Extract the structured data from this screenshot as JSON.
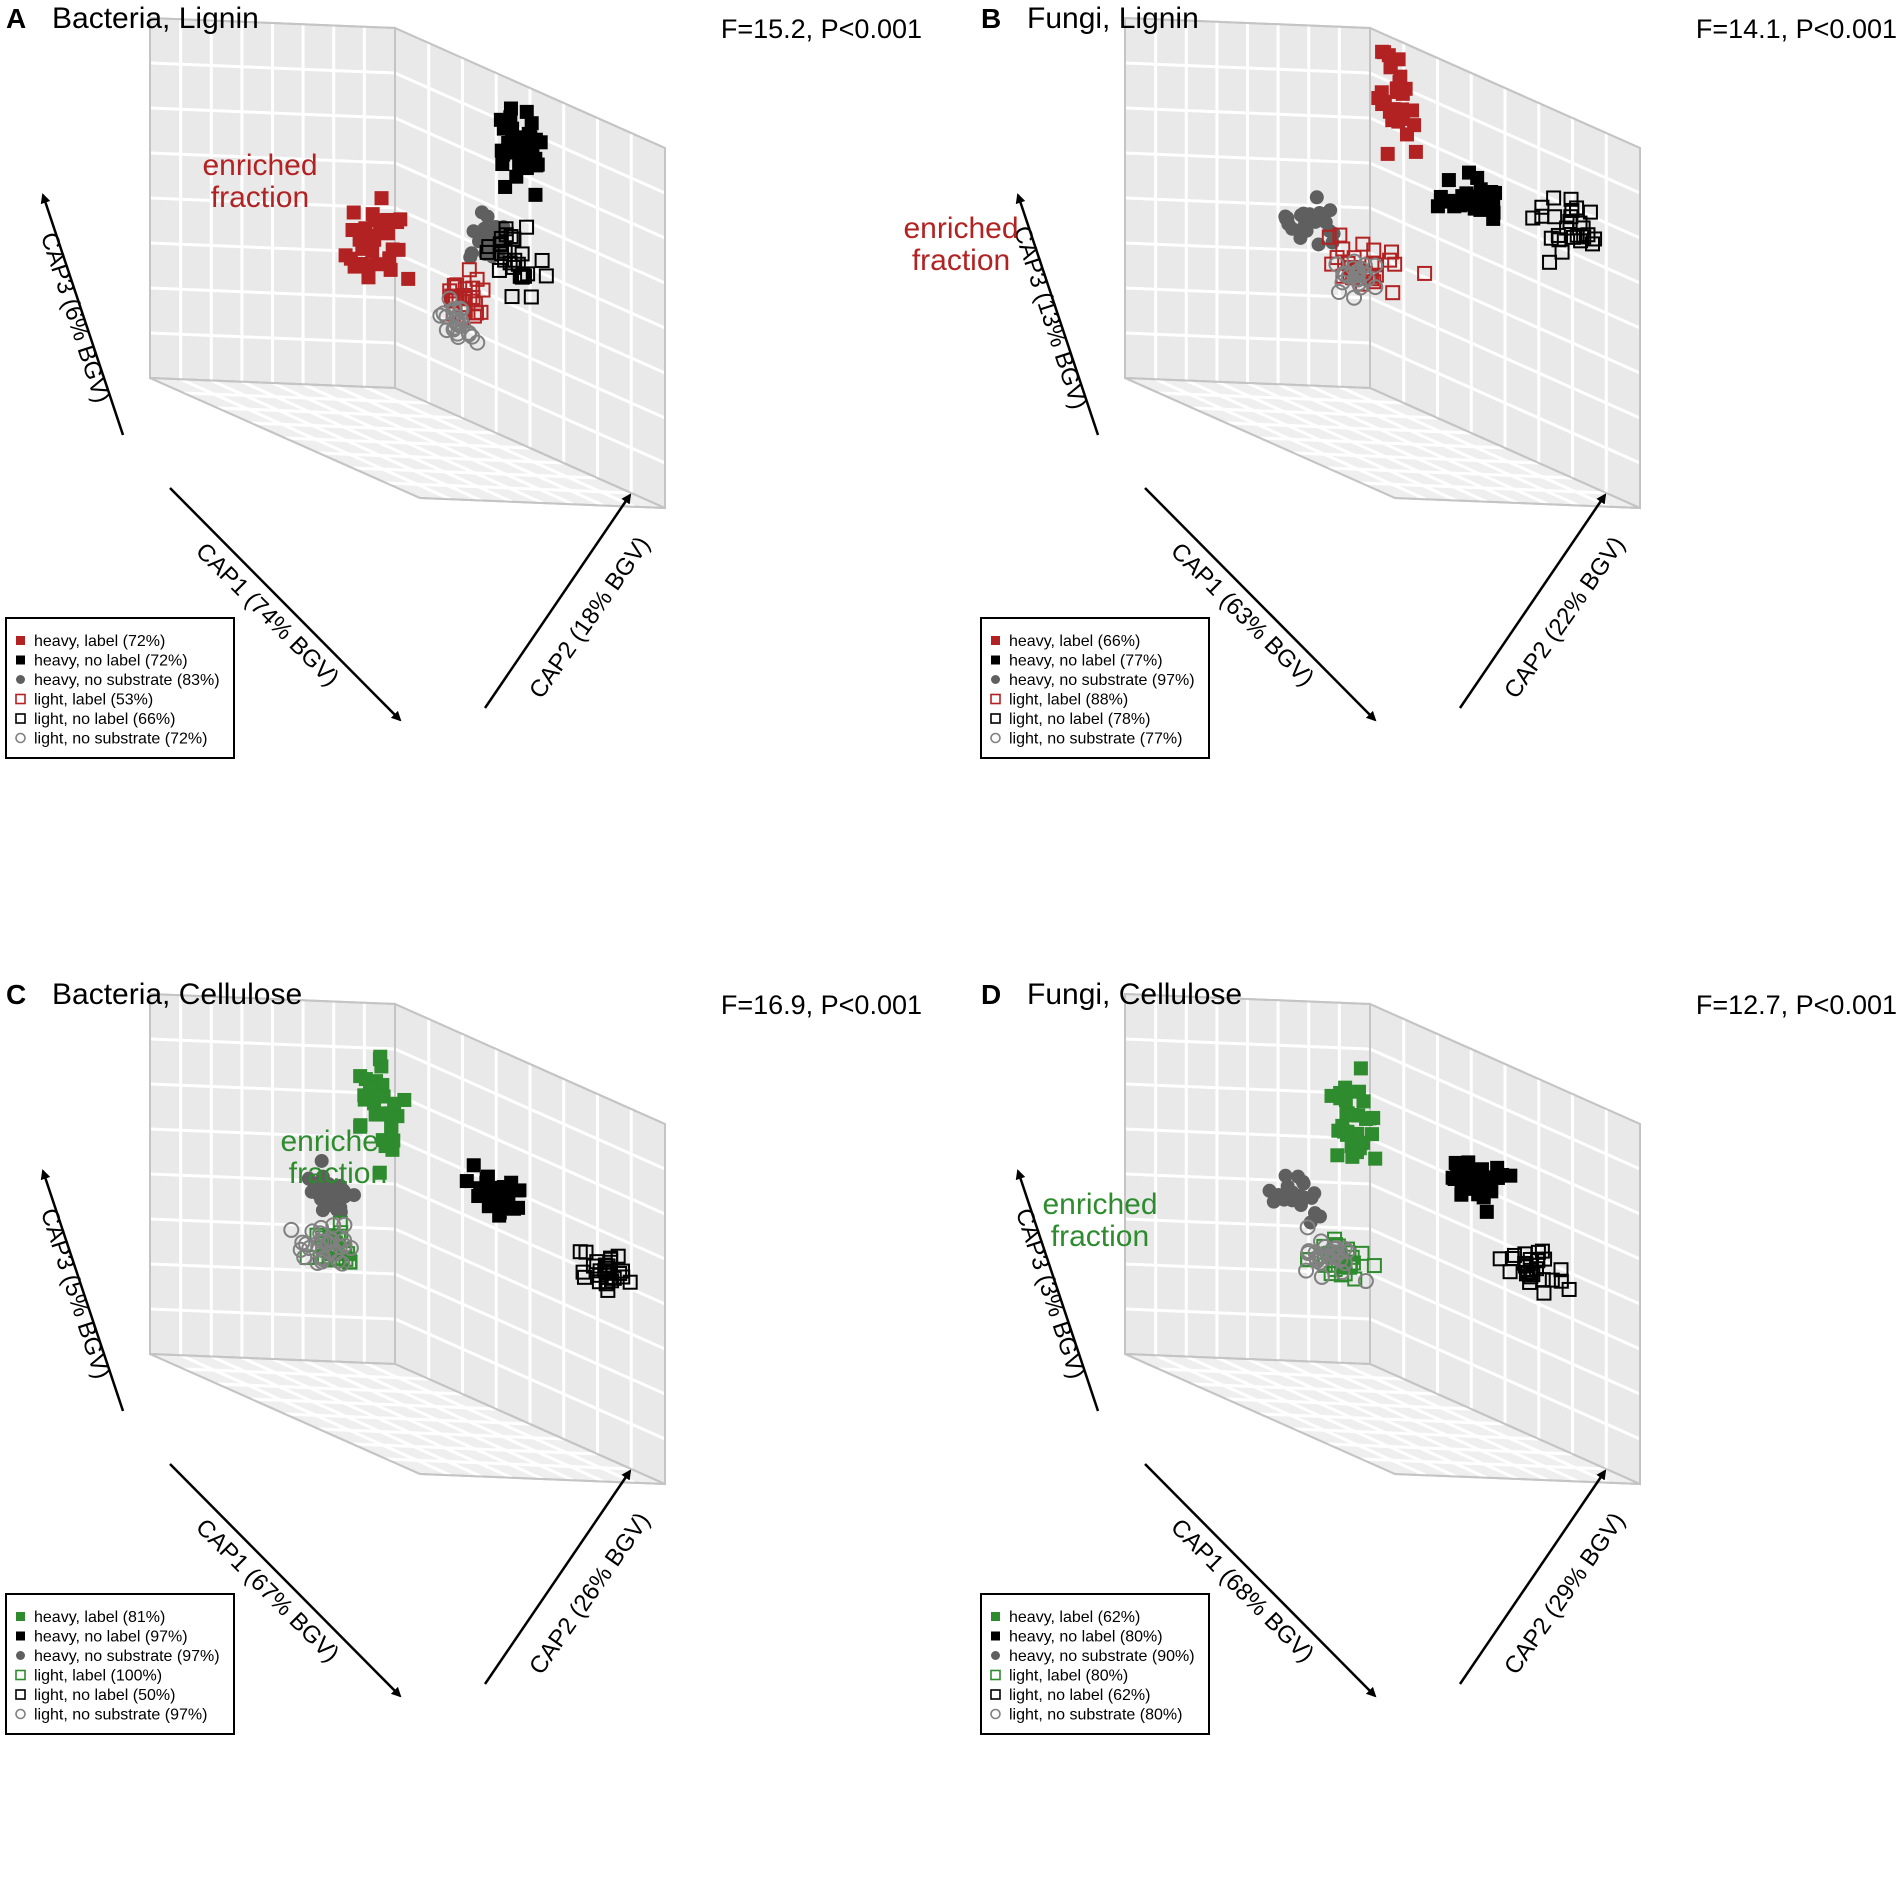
{
  "colors": {
    "red": "#b22222",
    "green": "#2e8b2e",
    "black": "#000000",
    "grey": "#5f5f5f",
    "lightgrey": "#808080",
    "wall": "#e9e9e9",
    "floor": "#efefef",
    "edge": "#c4c4c4",
    "grid": "#ffffff"
  },
  "icons": {
    "filled_square": "filled-square-icon",
    "filled_circle": "filled-circle-icon",
    "open_square": "open-square-icon",
    "open_circle": "open-circle-icon",
    "axis_arrow": "arrow-icon"
  },
  "chart_data": [
    {
      "type": "scatter",
      "panel_letter": "A",
      "title": "Bacteria, Lignin",
      "stat": "F=15.2, P<0.001",
      "accent": "red",
      "annotation": [
        "enriched",
        "fraction"
      ],
      "axis_labels": {
        "cap1": "CAP1 (74% BGV)",
        "cap2": "CAP2 (18% BGV)",
        "cap3": "CAP3 (6% BGV)"
      },
      "legend": [
        {
          "label": "heavy, label (72%)",
          "marker": "filled-square",
          "color": "red"
        },
        {
          "label": "heavy, no label (72%)",
          "marker": "filled-square",
          "color": "black"
        },
        {
          "label": "heavy, no substrate (83%)",
          "marker": "filled-circle",
          "color": "grey"
        },
        {
          "label": "light, label (53%)",
          "marker": "open-square",
          "color": "red"
        },
        {
          "label": "light, no label (66%)",
          "marker": "open-square",
          "color": "black"
        },
        {
          "label": "light, no substrate (72%)",
          "marker": "open-circle",
          "color": "lightgrey"
        }
      ],
      "groups": [
        {
          "name": "heavy, label",
          "center": [
            0.15,
            0.05,
            0.42
          ],
          "spread": [
            0.14,
            0.05,
            0.1
          ],
          "n": 33
        },
        {
          "name": "heavy, no label",
          "center": [
            0.06,
            0.5,
            0.82
          ],
          "spread": [
            0.05,
            0.08,
            0.12
          ],
          "n": 33
        },
        {
          "name": "heavy, no substrate",
          "center": [
            0.08,
            0.42,
            0.55
          ],
          "spread": [
            0.04,
            0.06,
            0.06
          ],
          "n": 26
        },
        {
          "name": "light, label",
          "center": [
            0.52,
            0.72,
            0.48
          ],
          "spread": [
            0.06,
            0.06,
            0.06
          ],
          "n": 26
        },
        {
          "name": "light, no label",
          "center": [
            0.45,
            0.85,
            0.62
          ],
          "spread": [
            0.06,
            0.08,
            0.1
          ],
          "n": 30
        },
        {
          "name": "light, no substrate",
          "center": [
            0.6,
            0.78,
            0.42
          ],
          "spread": [
            0.05,
            0.06,
            0.05
          ],
          "n": 24
        }
      ]
    },
    {
      "type": "scatter",
      "panel_letter": "B",
      "title": "Fungi, Lignin",
      "stat": "F=14.1, P<0.001",
      "accent": "red",
      "annotation": [
        "enriched",
        "fraction"
      ],
      "axis_labels": {
        "cap1": "CAP1 (63% BGV)",
        "cap2": "CAP2 (22% BGV)",
        "cap3": "CAP3 (13% BGV)"
      },
      "legend": [
        {
          "label": "heavy, label (66%)",
          "marker": "filled-square",
          "color": "red"
        },
        {
          "label": "heavy, no label (77%)",
          "marker": "filled-square",
          "color": "black"
        },
        {
          "label": "heavy, no substrate (97%)",
          "marker": "filled-circle",
          "color": "grey"
        },
        {
          "label": "light, label (88%)",
          "marker": "open-square",
          "color": "red"
        },
        {
          "label": "light, no label (78%)",
          "marker": "open-square",
          "color": "black"
        },
        {
          "label": "light, no substrate (77%)",
          "marker": "open-circle",
          "color": "lightgrey"
        }
      ],
      "groups": [
        {
          "name": "heavy, label",
          "center": [
            0.1,
            0.18,
            0.86
          ],
          "spread": [
            0.06,
            0.06,
            0.14
          ],
          "n": 30
        },
        {
          "name": "heavy, no label",
          "center": [
            0.2,
            0.55,
            0.7
          ],
          "spread": [
            0.08,
            0.08,
            0.08
          ],
          "n": 30
        },
        {
          "name": "heavy, no substrate",
          "center": [
            0.35,
            0.08,
            0.48
          ],
          "spread": [
            0.1,
            0.05,
            0.06
          ],
          "n": 24
        },
        {
          "name": "light, label",
          "center": [
            0.62,
            0.55,
            0.5
          ],
          "spread": [
            0.1,
            0.08,
            0.06
          ],
          "n": 28
        },
        {
          "name": "light, no label",
          "center": [
            0.1,
            0.85,
            0.72
          ],
          "spread": [
            0.07,
            0.08,
            0.08
          ],
          "n": 26
        },
        {
          "name": "light, no substrate",
          "center": [
            0.62,
            0.5,
            0.46
          ],
          "spread": [
            0.08,
            0.07,
            0.06
          ],
          "n": 24
        }
      ]
    },
    {
      "type": "scatter",
      "panel_letter": "C",
      "title": "Bacteria, Cellulose",
      "stat": "F=16.9, P<0.001",
      "accent": "green",
      "annotation": [
        "enriched",
        "fraction"
      ],
      "axis_labels": {
        "cap1": "CAP1 (67% BGV)",
        "cap2": "CAP2 (26% BGV)",
        "cap3": "CAP3 (5% BGV)"
      },
      "legend": [
        {
          "label": "heavy, label (81%)",
          "marker": "filled-square",
          "color": "green"
        },
        {
          "label": "heavy, no label (97%)",
          "marker": "filled-square",
          "color": "black"
        },
        {
          "label": "heavy, no substrate (97%)",
          "marker": "filled-circle",
          "color": "grey"
        },
        {
          "label": "light, label (100%)",
          "marker": "open-square",
          "color": "green"
        },
        {
          "label": "light, no label (50%)",
          "marker": "open-square",
          "color": "black"
        },
        {
          "label": "light, no substrate (97%)",
          "marker": "open-circle",
          "color": "lightgrey"
        }
      ],
      "groups": [
        {
          "name": "heavy, label",
          "center": [
            0.15,
            0.08,
            0.75
          ],
          "spread": [
            0.06,
            0.05,
            0.14
          ],
          "n": 34
        },
        {
          "name": "heavy, no label",
          "center": [
            0.1,
            0.45,
            0.62
          ],
          "spread": [
            0.05,
            0.08,
            0.05
          ],
          "n": 30
        },
        {
          "name": "heavy, no substrate",
          "center": [
            0.35,
            0.08,
            0.5
          ],
          "spread": [
            0.08,
            0.05,
            0.06
          ],
          "n": 30
        },
        {
          "name": "light, label",
          "center": [
            0.75,
            0.45,
            0.45
          ],
          "spread": [
            0.08,
            0.06,
            0.05
          ],
          "n": 30
        },
        {
          "name": "light, no label",
          "center": [
            0.1,
            0.88,
            0.55
          ],
          "spread": [
            0.08,
            0.06,
            0.05
          ],
          "n": 28
        },
        {
          "name": "light, no substrate",
          "center": [
            0.72,
            0.4,
            0.44
          ],
          "spread": [
            0.1,
            0.07,
            0.05
          ],
          "n": 30
        }
      ]
    },
    {
      "type": "scatter",
      "panel_letter": "D",
      "title": "Fungi, Cellulose",
      "stat": "F=12.7, P<0.001",
      "accent": "green",
      "annotation": [
        "enriched",
        "fraction"
      ],
      "axis_labels": {
        "cap1": "CAP1 (68% BGV)",
        "cap2": "CAP2 (29% BGV)",
        "cap3": "CAP3 (3% BGV)"
      },
      "legend": [
        {
          "label": "heavy, label (62%)",
          "marker": "filled-square",
          "color": "green"
        },
        {
          "label": "heavy, no label (80%)",
          "marker": "filled-square",
          "color": "black"
        },
        {
          "label": "heavy, no substrate (90%)",
          "marker": "filled-circle",
          "color": "grey"
        },
        {
          "label": "light, label (80%)",
          "marker": "open-square",
          "color": "green"
        },
        {
          "label": "light, no label (62%)",
          "marker": "open-square",
          "color": "black"
        },
        {
          "label": "light, no substrate (80%)",
          "marker": "open-circle",
          "color": "lightgrey"
        }
      ],
      "groups": [
        {
          "name": "heavy, label",
          "center": [
            0.18,
            0.1,
            0.7
          ],
          "spread": [
            0.07,
            0.06,
            0.14
          ],
          "n": 32
        },
        {
          "name": "heavy, no label",
          "center": [
            0.1,
            0.48,
            0.66
          ],
          "spread": [
            0.06,
            0.08,
            0.07
          ],
          "n": 28
        },
        {
          "name": "heavy, no substrate",
          "center": [
            0.38,
            0.06,
            0.48
          ],
          "spread": [
            0.08,
            0.05,
            0.05
          ],
          "n": 26
        },
        {
          "name": "light, label",
          "center": [
            0.72,
            0.55,
            0.45
          ],
          "spread": [
            0.08,
            0.08,
            0.05
          ],
          "n": 30
        },
        {
          "name": "light, no label",
          "center": [
            0.3,
            0.88,
            0.55
          ],
          "spread": [
            0.08,
            0.06,
            0.06
          ],
          "n": 28
        },
        {
          "name": "light, no substrate",
          "center": [
            0.72,
            0.5,
            0.44
          ],
          "spread": [
            0.1,
            0.08,
            0.05
          ],
          "n": 28
        }
      ]
    }
  ]
}
